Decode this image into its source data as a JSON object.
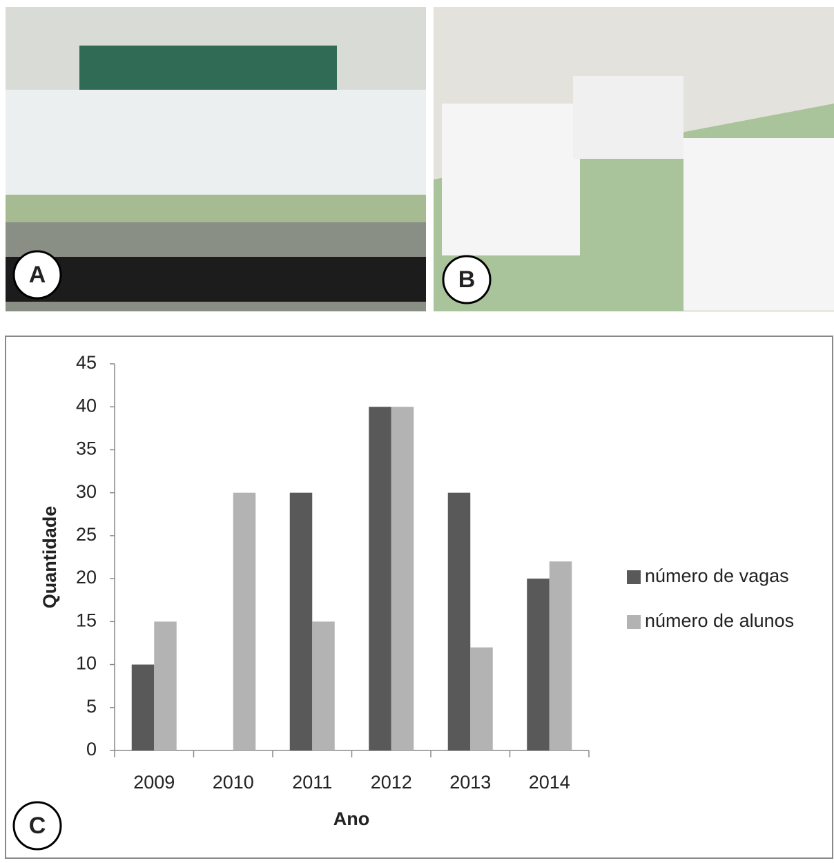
{
  "panels": [
    {
      "label": "A"
    },
    {
      "label": "B"
    },
    {
      "label": "C"
    }
  ],
  "chart_data": {
    "type": "bar",
    "categories": [
      "2009",
      "2010",
      "2011",
      "2012",
      "2013",
      "2014"
    ],
    "series": [
      {
        "name": "número de vagas",
        "color": "#595959",
        "values": [
          10,
          0,
          30,
          40,
          30,
          20
        ]
      },
      {
        "name": "número de alunos",
        "color": "#b3b3b3",
        "values": [
          15,
          30,
          15,
          40,
          12,
          22
        ]
      }
    ],
    "x_label": "Ano",
    "y_label": "Quantidade",
    "ylim": [
      0,
      45
    ],
    "yticks": [
      0,
      5,
      10,
      15,
      20,
      25,
      30,
      35,
      40,
      45
    ],
    "legend": "right"
  }
}
